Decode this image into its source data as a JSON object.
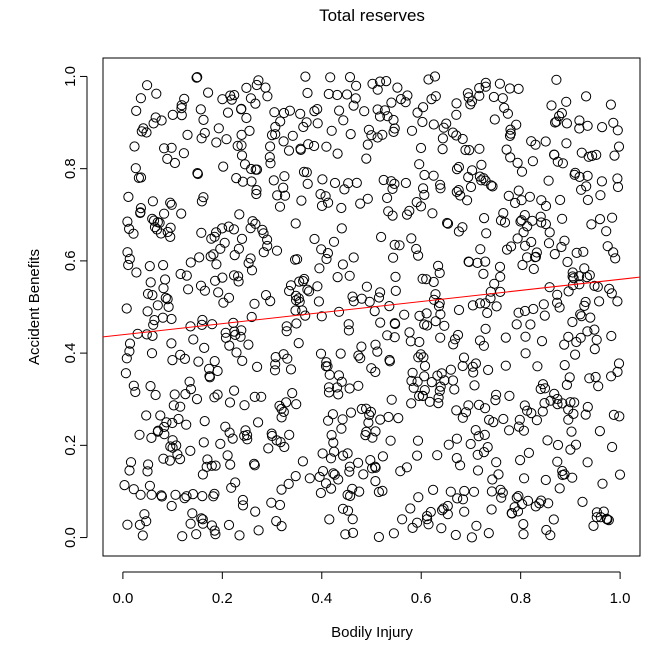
{
  "chart_data": {
    "type": "scatter",
    "title": "Total reserves",
    "xlabel": "Bodily Injury",
    "ylabel": "Accident Benefits",
    "xlim": [
      -0.04,
      1.04
    ],
    "ylim": [
      -0.04,
      1.04
    ],
    "x_ticks": [
      0.0,
      0.2,
      0.4,
      0.6,
      0.8,
      1.0
    ],
    "x_tick_labels": [
      "0.0",
      "0.2",
      "0.4",
      "0.6",
      "0.8",
      "1.0"
    ],
    "y_ticks": [
      0.0,
      0.2,
      0.4,
      0.6,
      0.8,
      1.0
    ],
    "y_tick_labels": [
      "0.0",
      "0.2",
      "0.4",
      "0.6",
      "0.8",
      "1.0"
    ],
    "grid": false,
    "point_style": "open-circle",
    "point_color": "#000000",
    "point_count": 1000,
    "point_distribution": "approximately uniform on [0,1] x [0,1]",
    "point_seed": 20240517,
    "fit_line": {
      "color": "#ff0000",
      "intercept": 0.44,
      "slope": 0.12
    }
  }
}
